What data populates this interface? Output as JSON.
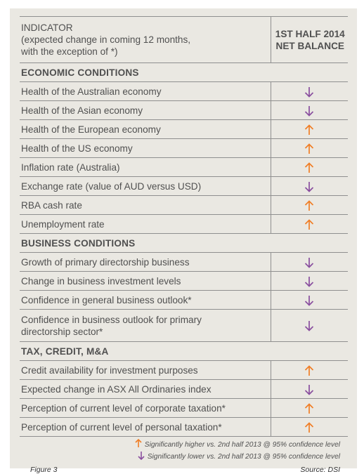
{
  "header": {
    "col1_title": "INDICATOR",
    "col1_sub_line1": "(expected change in coming 12 months,",
    "col1_sub_line2": "with the exception of *)",
    "col2_line1": "1ST HALF 2014",
    "col2_line2": "NET BALANCE"
  },
  "sections": [
    {
      "title": "ECONOMIC CONDITIONS",
      "rows": [
        {
          "label": "Health of the Australian economy",
          "direction": "down"
        },
        {
          "label": "Health of the Asian economy",
          "direction": "down"
        },
        {
          "label": "Health of the European economy",
          "direction": "up"
        },
        {
          "label": "Health of the US economy",
          "direction": "up"
        },
        {
          "label": "Inflation rate (Australia)",
          "direction": "up"
        },
        {
          "label": "Exchange rate (value of AUD versus USD)",
          "direction": "down"
        },
        {
          "label": "RBA cash rate",
          "direction": "up"
        },
        {
          "label": "Unemployment rate",
          "direction": "up"
        }
      ]
    },
    {
      "title": "BUSINESS CONDITIONS",
      "rows": [
        {
          "label": "Growth of primary directorship business",
          "direction": "down"
        },
        {
          "label": "Change in business investment levels",
          "direction": "down"
        },
        {
          "label": "Confidence in general business outlook*",
          "direction": "down"
        },
        {
          "label_line1": "Confidence in business outlook for primary",
          "label_line2": "directorship sector*",
          "direction": "down"
        }
      ]
    },
    {
      "title": "TAX, CREDIT, M&A",
      "rows": [
        {
          "label": "Credit availability for investment purposes",
          "direction": "up"
        },
        {
          "label": "Expected change in ASX All Ordinaries index",
          "direction": "down"
        },
        {
          "label": "Perception of current level of corporate taxation*",
          "direction": "up"
        },
        {
          "label": "Perception of current level of personal taxation*",
          "direction": "up"
        }
      ]
    }
  ],
  "legend": {
    "up_text": "Significantly higher vs. 2nd half 2013 @ 95% confidence level",
    "down_text": "Significantly lower vs. 2nd half 2013 @ 95% confidence level"
  },
  "footer": {
    "figure": "Figure 3",
    "source": "Source: DSI"
  },
  "colors": {
    "up_arrow": "#f07e26",
    "down_arrow": "#8a4f9f",
    "panel_bg": "#eae8e2"
  },
  "icons": {
    "up": "arrow-up-icon",
    "down": "arrow-down-icon"
  }
}
